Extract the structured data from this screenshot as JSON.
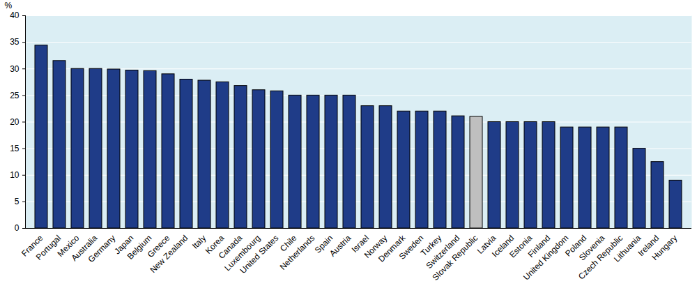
{
  "chart_data": {
    "type": "bar",
    "categories": [
      "France",
      "Portugal",
      "Mexico",
      "Australia",
      "Germany",
      "Japan",
      "Belgium",
      "Greece",
      "New Zealand",
      "Italy",
      "Korea",
      "Canada",
      "Luxembourg",
      "United States",
      "Chile",
      "Netherlands",
      "Spain",
      "Austria",
      "Israel",
      "Norway",
      "Denmark",
      "Sweden",
      "Turkey",
      "Switzerland",
      "Slovak Republic",
      "Latvia",
      "Iceland",
      "Estonia",
      "Finland",
      "United Kingdom",
      "Poland",
      "Slovenia",
      "Czech Republic",
      "Lithuania",
      "Ireland",
      "Hungary"
    ],
    "values": [
      34.4,
      31.5,
      30,
      30,
      29.9,
      29.7,
      29.6,
      29,
      28,
      27.8,
      27.5,
      26.8,
      26,
      25.8,
      25,
      25,
      25,
      25,
      23,
      23,
      22,
      22,
      22,
      21.1,
      21,
      20,
      20,
      20,
      20,
      19,
      19,
      19,
      19,
      15,
      12.5,
      9
    ],
    "colors": [
      "#1f3c88",
      "#1f3c88",
      "#1f3c88",
      "#1f3c88",
      "#1f3c88",
      "#1f3c88",
      "#1f3c88",
      "#1f3c88",
      "#1f3c88",
      "#1f3c88",
      "#1f3c88",
      "#1f3c88",
      "#1f3c88",
      "#1f3c88",
      "#1f3c88",
      "#1f3c88",
      "#1f3c88",
      "#1f3c88",
      "#1f3c88",
      "#1f3c88",
      "#1f3c88",
      "#1f3c88",
      "#1f3c88",
      "#1f3c88",
      "#bfbfbf",
      "#1f3c88",
      "#1f3c88",
      "#1f3c88",
      "#1f3c88",
      "#1f3c88",
      "#1f3c88",
      "#1f3c88",
      "#1f3c88",
      "#1f3c88",
      "#1f3c88",
      "#1f3c88"
    ],
    "y_label": "%",
    "ylim": [
      0,
      40
    ],
    "yticks": [
      0,
      5,
      10,
      15,
      20,
      25,
      30,
      35,
      40
    ],
    "grid": true
  }
}
